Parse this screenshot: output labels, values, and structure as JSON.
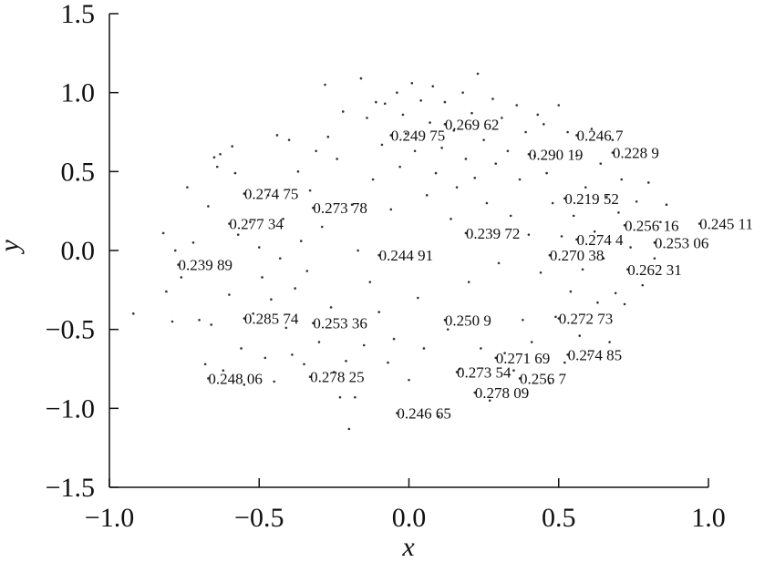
{
  "chart_data": {
    "type": "scatter",
    "title": "",
    "xlabel": "x",
    "ylabel": "y",
    "xlim": [
      -1.0,
      1.0
    ],
    "ylim": [
      -1.5,
      1.5
    ],
    "grid": false,
    "legend": "none",
    "x_ticks": [
      -1.0,
      -0.5,
      0.0,
      0.5,
      1.0
    ],
    "x_tick_labels": [
      "−1.0",
      "−0.5",
      "0.0",
      "0.5",
      "1.0"
    ],
    "y_ticks": [
      1.5,
      1.0,
      0.5,
      0.0,
      -0.5,
      -1.0,
      -1.5
    ],
    "y_tick_labels": [
      "1.5",
      "1.0",
      "0.5",
      "0.0",
      "−0.5",
      "−1.0",
      "−1.5"
    ],
    "labeled_points": [
      {
        "x": 0.12,
        "y": 0.8,
        "text": "0.269 62"
      },
      {
        "x": -0.06,
        "y": 0.73,
        "text": "0.249 75"
      },
      {
        "x": 0.56,
        "y": 0.73,
        "text": "0.246 7"
      },
      {
        "x": 0.4,
        "y": 0.61,
        "text": "0.290 19"
      },
      {
        "x": 0.68,
        "y": 0.62,
        "text": "0.228 9"
      },
      {
        "x": -0.55,
        "y": 0.36,
        "text": "0.274 75"
      },
      {
        "x": 0.52,
        "y": 0.33,
        "text": "0.219 52"
      },
      {
        "x": -0.32,
        "y": 0.27,
        "text": "0.273 78"
      },
      {
        "x": -0.6,
        "y": 0.17,
        "text": "0.277 34"
      },
      {
        "x": 0.72,
        "y": 0.16,
        "text": "0.256 16"
      },
      {
        "x": 0.97,
        "y": 0.17,
        "text": "0.245 11"
      },
      {
        "x": 0.19,
        "y": 0.11,
        "text": "0.239 72"
      },
      {
        "x": 0.56,
        "y": 0.07,
        "text": "0.274 4"
      },
      {
        "x": 0.82,
        "y": 0.05,
        "text": "0.253 06"
      },
      {
        "x": -0.1,
        "y": -0.03,
        "text": "0.244 91"
      },
      {
        "x": 0.47,
        "y": -0.03,
        "text": "0.270 38"
      },
      {
        "x": -0.77,
        "y": -0.09,
        "text": "0.239 89"
      },
      {
        "x": 0.73,
        "y": -0.12,
        "text": "0.262 31"
      },
      {
        "x": -0.55,
        "y": -0.43,
        "text": "0.285 74"
      },
      {
        "x": -0.32,
        "y": -0.46,
        "text": "0.253 36"
      },
      {
        "x": 0.12,
        "y": -0.44,
        "text": "0.250 9"
      },
      {
        "x": 0.5,
        "y": -0.43,
        "text": "0.272 73"
      },
      {
        "x": 0.29,
        "y": -0.68,
        "text": "0.271 69"
      },
      {
        "x": 0.53,
        "y": -0.66,
        "text": "0.274 85"
      },
      {
        "x": 0.16,
        "y": -0.77,
        "text": "0.273 54"
      },
      {
        "x": 0.37,
        "y": -0.81,
        "text": "0.256 7"
      },
      {
        "x": -0.67,
        "y": -0.81,
        "text": "0.248 06"
      },
      {
        "x": -0.33,
        "y": -0.8,
        "text": "0.278 25"
      },
      {
        "x": 0.22,
        "y": -0.9,
        "text": "0.278 09"
      },
      {
        "x": -0.04,
        "y": -1.03,
        "text": "0.246 65"
      }
    ],
    "points": [
      [
        -0.92,
        -0.4
      ],
      [
        -0.82,
        0.11
      ],
      [
        -0.81,
        -0.26
      ],
      [
        -0.79,
        -0.45
      ],
      [
        -0.78,
        0.0
      ],
      [
        -0.76,
        -0.17
      ],
      [
        -0.74,
        0.4
      ],
      [
        -0.72,
        0.05
      ],
      [
        -0.7,
        -0.44
      ],
      [
        -0.68,
        -0.72
      ],
      [
        -0.67,
        0.28
      ],
      [
        -0.66,
        -0.47
      ],
      [
        -0.65,
        0.59
      ],
      [
        -0.64,
        0.53
      ],
      [
        -0.63,
        0.61
      ],
      [
        -0.62,
        -0.76
      ],
      [
        -0.6,
        -0.28
      ],
      [
        -0.59,
        0.66
      ],
      [
        -0.58,
        0.49
      ],
      [
        -0.57,
        0.1
      ],
      [
        -0.56,
        -0.62
      ],
      [
        -0.55,
        -0.85
      ],
      [
        -0.53,
        0.18
      ],
      [
        -0.52,
        -0.4
      ],
      [
        -0.5,
        0.02
      ],
      [
        -0.49,
        -0.17
      ],
      [
        -0.48,
        -0.68
      ],
      [
        -0.47,
        0.35
      ],
      [
        -0.46,
        -0.31
      ],
      [
        -0.45,
        -0.83
      ],
      [
        -0.44,
        0.73
      ],
      [
        -0.43,
        -0.05
      ],
      [
        -0.42,
        0.2
      ],
      [
        -0.41,
        -0.49
      ],
      [
        -0.4,
        0.7
      ],
      [
        -0.39,
        -0.66
      ],
      [
        -0.38,
        -0.24
      ],
      [
        -0.37,
        0.5
      ],
      [
        -0.36,
        0.06
      ],
      [
        -0.35,
        -0.72
      ],
      [
        -0.34,
        -0.13
      ],
      [
        -0.33,
        0.38
      ],
      [
        -0.31,
        0.63
      ],
      [
        -0.3,
        -0.58
      ],
      [
        -0.29,
        0.15
      ],
      [
        -0.28,
        1.05
      ],
      [
        -0.27,
        0.72
      ],
      [
        -0.26,
        -0.36
      ],
      [
        -0.25,
        -0.77
      ],
      [
        -0.24,
        0.58
      ],
      [
        -0.23,
        -0.93
      ],
      [
        -0.22,
        0.88
      ],
      [
        -0.21,
        -0.7
      ],
      [
        -0.2,
        -1.13
      ],
      [
        -0.19,
        0.29
      ],
      [
        -0.18,
        -0.93
      ],
      [
        -0.17,
        0.0
      ],
      [
        -0.16,
        1.09
      ],
      [
        -0.15,
        -0.6
      ],
      [
        -0.14,
        0.84
      ],
      [
        -0.13,
        -0.2
      ],
      [
        -0.12,
        0.45
      ],
      [
        -0.11,
        0.94
      ],
      [
        -0.1,
        -0.39
      ],
      [
        -0.09,
        0.67
      ],
      [
        -0.08,
        0.93
      ],
      [
        -0.07,
        -0.71
      ],
      [
        -0.06,
        0.26
      ],
      [
        -0.05,
        -0.56
      ],
      [
        -0.04,
        1.0
      ],
      [
        -0.03,
        0.53
      ],
      [
        -0.02,
        0.86
      ],
      [
        -0.01,
        0.74
      ],
      [
        0.0,
        -0.82
      ],
      [
        0.01,
        1.06
      ],
      [
        0.02,
        0.63
      ],
      [
        0.03,
        -0.3
      ],
      [
        0.04,
        0.95
      ],
      [
        0.05,
        -0.62
      ],
      [
        0.06,
        0.35
      ],
      [
        0.07,
        0.81
      ],
      [
        0.08,
        1.04
      ],
      [
        0.09,
        0.49
      ],
      [
        0.1,
        -1.05
      ],
      [
        0.11,
        0.65
      ],
      [
        0.12,
        0.94
      ],
      [
        0.13,
        -0.5
      ],
      [
        0.14,
        0.2
      ],
      [
        0.15,
        0.76
      ],
      [
        0.16,
        0.4
      ],
      [
        0.17,
        -0.75
      ],
      [
        0.18,
        1.0
      ],
      [
        0.19,
        0.58
      ],
      [
        0.2,
        -0.2
      ],
      [
        0.21,
        0.87
      ],
      [
        0.22,
        0.46
      ],
      [
        0.23,
        1.12
      ],
      [
        0.24,
        -0.62
      ],
      [
        0.25,
        0.7
      ],
      [
        0.26,
        0.3
      ],
      [
        0.27,
        -0.95
      ],
      [
        0.28,
        0.96
      ],
      [
        0.29,
        0.55
      ],
      [
        0.3,
        -0.08
      ],
      [
        0.31,
        0.84
      ],
      [
        0.32,
        -0.65
      ],
      [
        0.33,
        0.63
      ],
      [
        0.34,
        0.22
      ],
      [
        0.35,
        -0.76
      ],
      [
        0.36,
        0.92
      ],
      [
        0.37,
        0.45
      ],
      [
        0.38,
        -0.44
      ],
      [
        0.39,
        0.75
      ],
      [
        0.4,
        0.1
      ],
      [
        0.41,
        -0.58
      ],
      [
        0.42,
        0.6
      ],
      [
        0.43,
        0.86
      ],
      [
        0.44,
        -0.14
      ],
      [
        0.45,
        0.8
      ],
      [
        0.46,
        0.49
      ],
      [
        0.47,
        -0.84
      ],
      [
        0.48,
        0.3
      ],
      [
        0.49,
        -0.42
      ],
      [
        0.5,
        0.92
      ],
      [
        0.51,
        0.09
      ],
      [
        0.52,
        -0.71
      ],
      [
        0.53,
        0.75
      ],
      [
        0.54,
        -0.26
      ],
      [
        0.55,
        0.22
      ],
      [
        0.56,
        0.6
      ],
      [
        0.57,
        -0.54
      ],
      [
        0.58,
        -0.12
      ],
      [
        0.59,
        0.4
      ],
      [
        0.6,
        -0.66
      ],
      [
        0.61,
        0.77
      ],
      [
        0.62,
        0.12
      ],
      [
        0.63,
        -0.33
      ],
      [
        0.64,
        0.55
      ],
      [
        0.65,
        -0.05
      ],
      [
        0.66,
        0.34
      ],
      [
        0.67,
        -0.58
      ],
      [
        0.68,
        0.7
      ],
      [
        0.69,
        -0.27
      ],
      [
        0.7,
        0.24
      ],
      [
        0.71,
        0.45
      ],
      [
        0.72,
        -0.34
      ],
      [
        0.74,
        0.02
      ],
      [
        0.76,
        0.31
      ],
      [
        0.78,
        -0.22
      ],
      [
        0.8,
        0.43
      ],
      [
        0.82,
        -0.05
      ],
      [
        0.84,
        0.18
      ],
      [
        0.86,
        0.29
      ]
    ]
  }
}
